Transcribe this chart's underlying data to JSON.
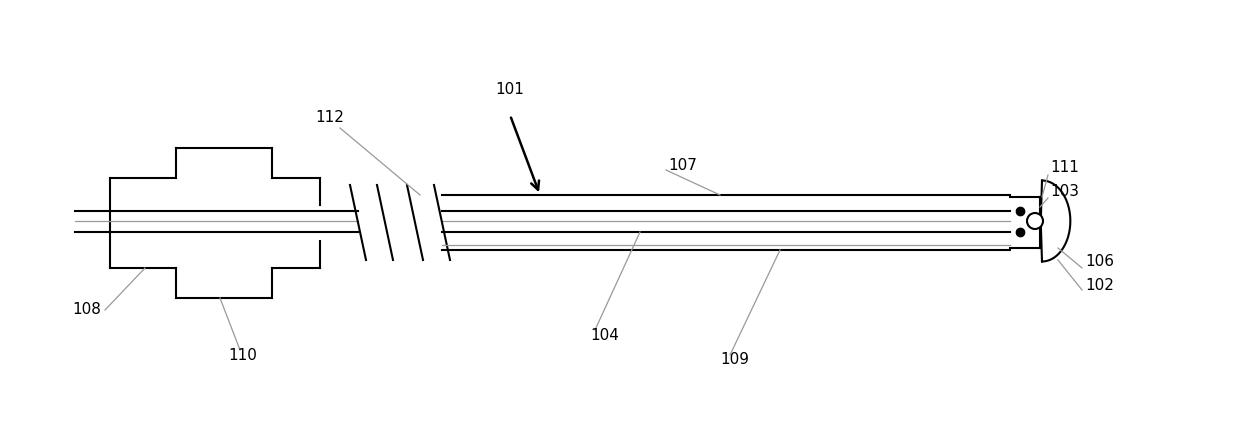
{
  "bg_color": "#ffffff",
  "line_color": "#000000",
  "gray_line_color": "#999999",
  "fig_width": 12.4,
  "fig_height": 4.42,
  "lw_main": 1.5,
  "lw_thin": 0.9,
  "label_fontsize": 11
}
